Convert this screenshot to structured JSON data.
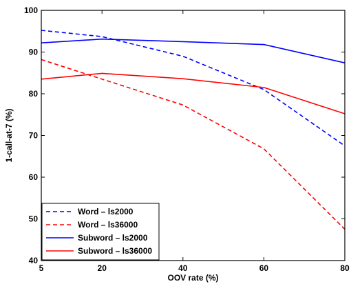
{
  "chart_data": {
    "type": "line",
    "xlabel": "OOV rate (%)",
    "ylabel": "1-call-at-7 (%)",
    "xlim": [
      5,
      80
    ],
    "ylim": [
      40,
      100
    ],
    "xticks": [
      5,
      20,
      40,
      60,
      80
    ],
    "yticks": [
      40,
      50,
      60,
      70,
      80,
      90,
      100
    ],
    "grid": false,
    "legend_position": "bottom-left",
    "series": [
      {
        "name": "Word – ls2000",
        "color": "#0000ff",
        "dash": "dashed",
        "x": [
          5,
          20,
          40,
          60,
          80
        ],
        "y": [
          95.2,
          93.7,
          89.0,
          81.0,
          67.5
        ]
      },
      {
        "name": "Word – ls36000",
        "color": "#ff0000",
        "dash": "dashed",
        "x": [
          5,
          20,
          40,
          60,
          80
        ],
        "y": [
          88.2,
          83.5,
          77.3,
          66.8,
          47.5
        ]
      },
      {
        "name": "Subword – ls2000",
        "color": "#0000ff",
        "dash": "solid",
        "x": [
          5,
          20,
          40,
          60,
          80
        ],
        "y": [
          92.2,
          93.1,
          92.5,
          91.8,
          87.4
        ]
      },
      {
        "name": "Subword – ls36000",
        "color": "#ff0000",
        "dash": "solid",
        "x": [
          5,
          20,
          40,
          60,
          80
        ],
        "y": [
          83.5,
          84.9,
          83.6,
          81.5,
          75.2
        ]
      }
    ]
  }
}
